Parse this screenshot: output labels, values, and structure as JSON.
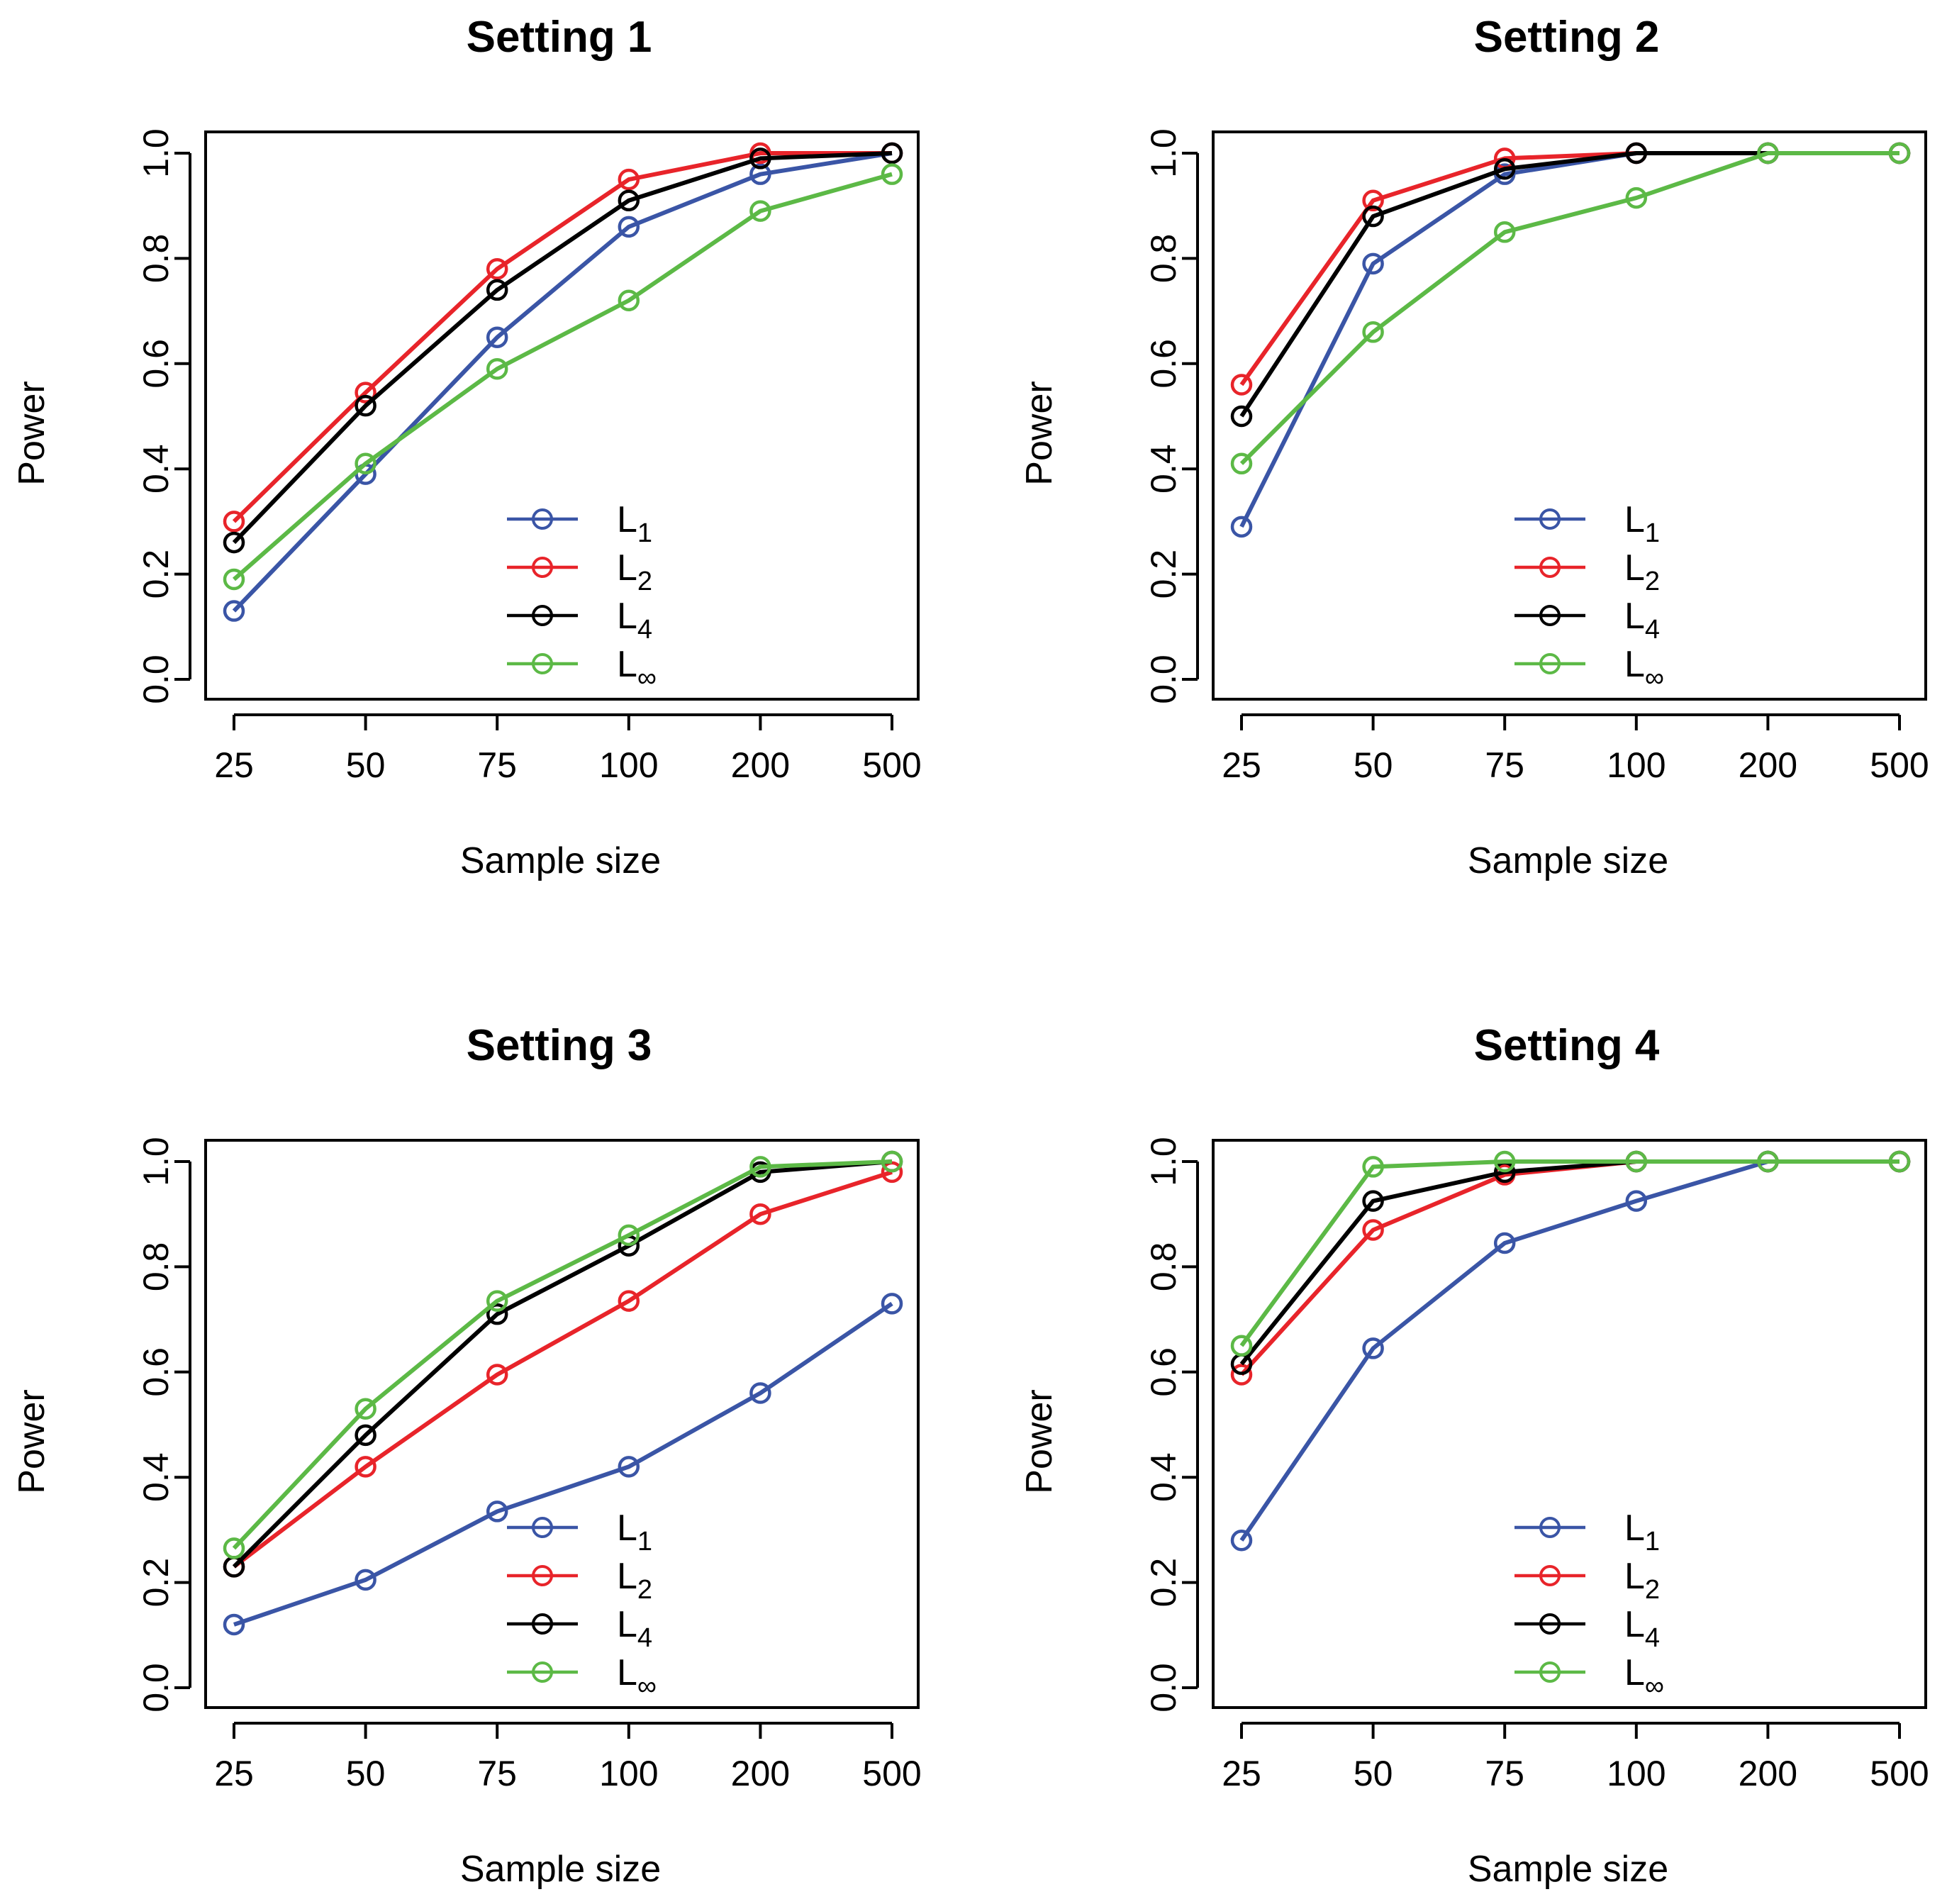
{
  "colors": {
    "L1": "#3a55a6",
    "L2": "#e8242a",
    "L4": "#000000",
    "Linf": "#5cb946"
  },
  "chart_data": [
    {
      "type": "line",
      "title": "Setting 1",
      "xlabel": "Sample size",
      "ylabel": "Power",
      "categories": [
        "25",
        "50",
        "75",
        "100",
        "200",
        "500"
      ],
      "yticks": [
        "0.0",
        "0.2",
        "0.4",
        "0.6",
        "0.8",
        "1.0"
      ],
      "ylim": [
        0,
        1
      ],
      "legend_position": "bottom-right",
      "series": [
        {
          "key": "L1",
          "name": "L",
          "sub": "1",
          "values": [
            0.13,
            0.39,
            0.65,
            0.86,
            0.96,
            1.0
          ]
        },
        {
          "key": "L2",
          "name": "L",
          "sub": "2",
          "values": [
            0.3,
            0.545,
            0.78,
            0.95,
            1.0,
            1.0
          ]
        },
        {
          "key": "L4",
          "name": "L",
          "sub": "4",
          "values": [
            0.26,
            0.52,
            0.74,
            0.91,
            0.99,
            1.0
          ]
        },
        {
          "key": "Linf",
          "name": "L",
          "sub": "∞",
          "values": [
            0.19,
            0.41,
            0.59,
            0.72,
            0.89,
            0.96
          ]
        }
      ]
    },
    {
      "type": "line",
      "title": "Setting 2",
      "xlabel": "Sample size",
      "ylabel": "Power",
      "categories": [
        "25",
        "50",
        "75",
        "100",
        "200",
        "500"
      ],
      "yticks": [
        "0.0",
        "0.2",
        "0.4",
        "0.6",
        "0.8",
        "1.0"
      ],
      "ylim": [
        0,
        1
      ],
      "legend_position": "bottom-right",
      "series": [
        {
          "key": "L1",
          "name": "L",
          "sub": "1",
          "values": [
            0.29,
            0.79,
            0.96,
            1.0,
            1.0,
            1.0
          ]
        },
        {
          "key": "L2",
          "name": "L",
          "sub": "2",
          "values": [
            0.56,
            0.91,
            0.99,
            1.0,
            1.0,
            1.0
          ]
        },
        {
          "key": "L4",
          "name": "L",
          "sub": "4",
          "values": [
            0.5,
            0.88,
            0.97,
            1.0,
            1.0,
            1.0
          ]
        },
        {
          "key": "Linf",
          "name": "L",
          "sub": "∞",
          "values": [
            0.41,
            0.66,
            0.85,
            0.915,
            1.0,
            1.0
          ]
        }
      ]
    },
    {
      "type": "line",
      "title": "Setting 3",
      "xlabel": "Sample size",
      "ylabel": "Power",
      "categories": [
        "25",
        "50",
        "75",
        "100",
        "200",
        "500"
      ],
      "yticks": [
        "0.0",
        "0.2",
        "0.4",
        "0.6",
        "0.8",
        "1.0"
      ],
      "ylim": [
        0,
        1
      ],
      "legend_position": "bottom-right",
      "series": [
        {
          "key": "L1",
          "name": "L",
          "sub": "1",
          "values": [
            0.12,
            0.205,
            0.335,
            0.42,
            0.56,
            0.73
          ]
        },
        {
          "key": "L2",
          "name": "L",
          "sub": "2",
          "values": [
            0.23,
            0.42,
            0.595,
            0.735,
            0.9,
            0.98
          ]
        },
        {
          "key": "L4",
          "name": "L",
          "sub": "4",
          "values": [
            0.23,
            0.48,
            0.71,
            0.84,
            0.98,
            1.0
          ]
        },
        {
          "key": "Linf",
          "name": "L",
          "sub": "∞",
          "values": [
            0.265,
            0.53,
            0.735,
            0.86,
            0.99,
            1.0
          ]
        }
      ]
    },
    {
      "type": "line",
      "title": "Setting 4",
      "xlabel": "Sample size",
      "ylabel": "Power",
      "categories": [
        "25",
        "50",
        "75",
        "100",
        "200",
        "500"
      ],
      "yticks": [
        "0.0",
        "0.2",
        "0.4",
        "0.6",
        "0.8",
        "1.0"
      ],
      "ylim": [
        0,
        1
      ],
      "legend_position": "bottom-right",
      "series": [
        {
          "key": "L1",
          "name": "L",
          "sub": "1",
          "values": [
            0.28,
            0.645,
            0.845,
            0.925,
            1.0,
            1.0
          ]
        },
        {
          "key": "L2",
          "name": "L",
          "sub": "2",
          "values": [
            0.595,
            0.87,
            0.975,
            1.0,
            1.0,
            1.0
          ]
        },
        {
          "key": "L4",
          "name": "L",
          "sub": "4",
          "values": [
            0.615,
            0.925,
            0.98,
            1.0,
            1.0,
            1.0
          ]
        },
        {
          "key": "Linf",
          "name": "L",
          "sub": "∞",
          "values": [
            0.65,
            0.99,
            1.0,
            1.0,
            1.0,
            1.0
          ]
        }
      ]
    }
  ]
}
